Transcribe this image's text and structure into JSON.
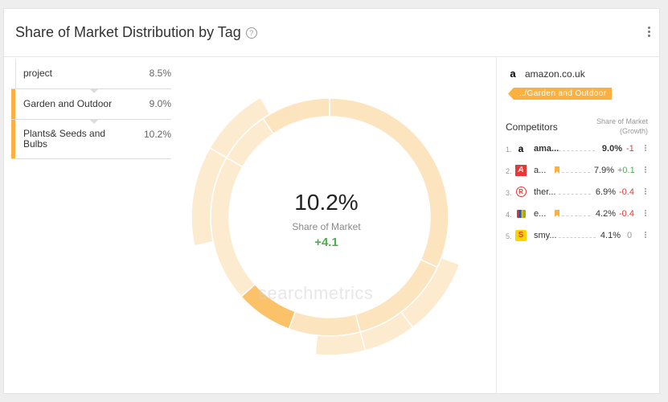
{
  "widget": {
    "title": "Share of Market Distribution by Tag",
    "help_icon": "question-circle-icon",
    "menu_icon": "kebab-menu-icon"
  },
  "tags": [
    {
      "label": "project",
      "value": "8.5%",
      "color": "#ffffff"
    },
    {
      "label": "Garden and Outdoor",
      "value": "9.0%",
      "color": "#fbb040"
    },
    {
      "label": "Plants& Seeds and Bulbs",
      "value": "10.2%",
      "color": "#fbb040"
    }
  ],
  "center": {
    "value": "10.2%",
    "label": "Share of Market",
    "growth": "+4.1"
  },
  "watermark": "searchmetrics",
  "ring_colors": {
    "outer": "#fdebd0",
    "middle": "#fce4bf",
    "highlight": "#fbc26a"
  },
  "right_panel": {
    "domain": "amazon.co.uk",
    "tag_path": "../Garden and Outdoor",
    "competitors_label": "Competitors",
    "column_header_1": "Share of Market",
    "column_header_2": "(Growth)",
    "competitors": [
      {
        "rank": "1.",
        "name": "ama...",
        "value": "9.0%",
        "growth": "-1",
        "growth_color": "#e53935",
        "icon": "amazon-icon",
        "bookmark": false
      },
      {
        "rank": "2.",
        "name": "a...",
        "value": "7.9%",
        "growth": "+0.1",
        "growth_color": "#4caf50",
        "icon": "argos-icon",
        "bookmark": true
      },
      {
        "rank": "3.",
        "name": "ther...",
        "value": "6.9%",
        "growth": "-0.4",
        "growth_color": "#e53935",
        "icon": "range-icon",
        "bookmark": false
      },
      {
        "rank": "4.",
        "name": "e...",
        "value": "4.2%",
        "growth": "-0.4",
        "growth_color": "#e53935",
        "icon": "ebay-icon",
        "bookmark": true
      },
      {
        "rank": "5.",
        "name": "smy...",
        "value": "4.1%",
        "growth": "0",
        "growth_color": "#999999",
        "icon": "smyths-icon",
        "bookmark": false
      }
    ]
  }
}
